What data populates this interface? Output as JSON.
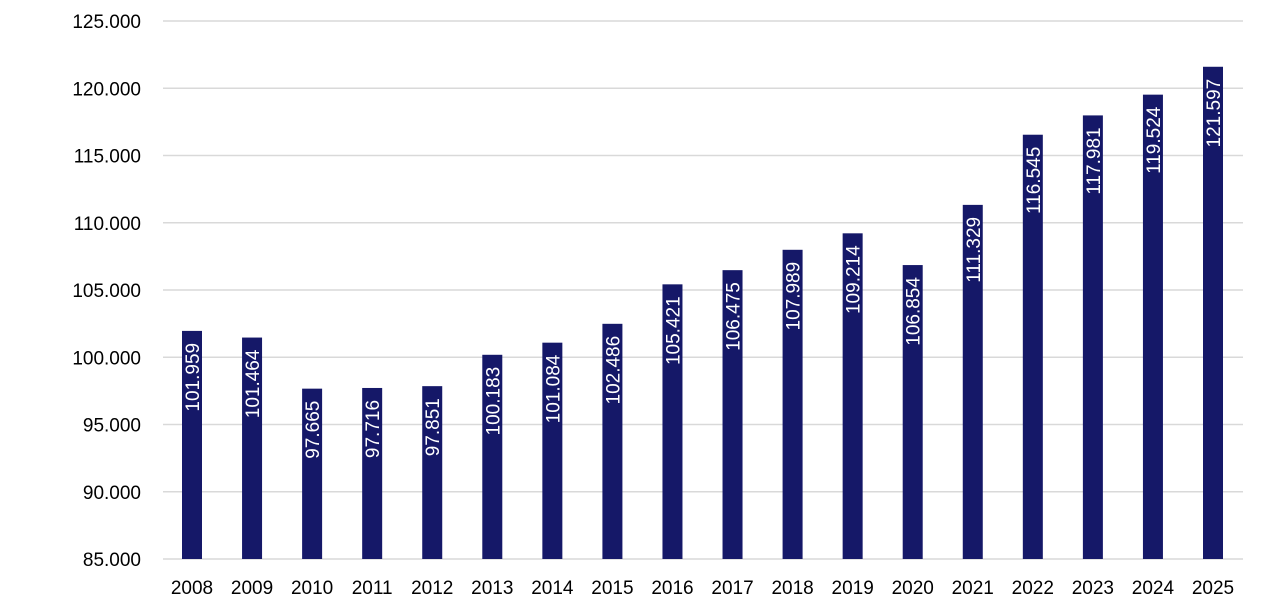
{
  "chart_data": {
    "type": "bar",
    "title": "",
    "xlabel": "",
    "ylabel": "",
    "ylim": [
      85000,
      125000
    ],
    "grid": true,
    "legend": "none",
    "bar_color": "#151868",
    "label_color": "#ffffff",
    "grid_color": "#d9d9d9",
    "y_ticks": [
      85000,
      90000,
      95000,
      100000,
      105000,
      110000,
      115000,
      120000,
      125000
    ],
    "y_tick_labels": [
      "85.000",
      "90.000",
      "95.000",
      "100.000",
      "105.000",
      "110.000",
      "115.000",
      "120.000",
      "125.000"
    ],
    "categories": [
      "2008",
      "2009",
      "2010",
      "2011",
      "2012",
      "2013",
      "2014",
      "2015",
      "2016",
      "2017",
      "2018",
      "2019",
      "2020",
      "2021",
      "2022",
      "2023",
      "2024",
      "2025"
    ],
    "values": [
      101959,
      101464,
      97665,
      97716,
      97851,
      100183,
      101084,
      102486,
      105421,
      106475,
      107989,
      109214,
      106854,
      111329,
      116545,
      117981,
      119524,
      121597
    ],
    "data_labels": [
      "101.959",
      "101.464",
      "97.665",
      "97.716",
      "97.851",
      "100.183",
      "101.084",
      "102.486",
      "105.421",
      "106.475",
      "107.989",
      "109.214",
      "106.854",
      "111.329",
      "116.545",
      "117.981",
      "119.524",
      "121.597"
    ]
  }
}
